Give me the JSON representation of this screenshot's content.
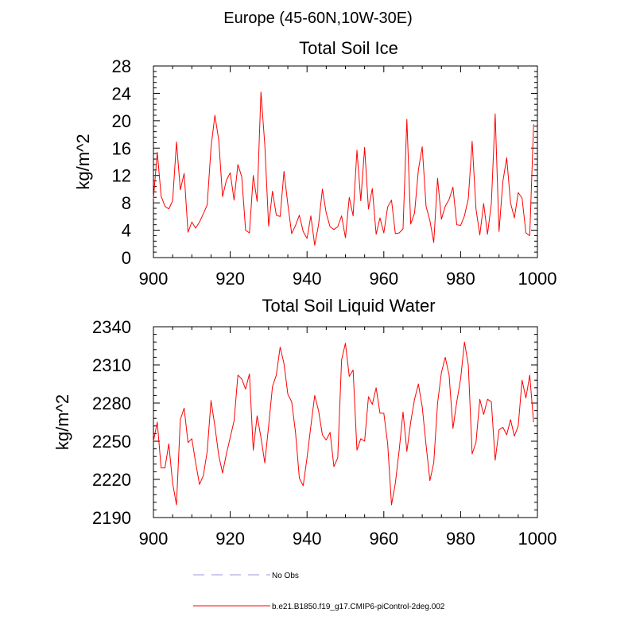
{
  "title": "Europe (45-60N,10W-30E)",
  "chart_data": [
    {
      "type": "line",
      "title": "Total Soil Ice",
      "xlabel": "",
      "ylabel": "kg/m^2",
      "xlim": [
        900,
        1000
      ],
      "ylim": [
        0,
        28
      ],
      "xticks": [
        900,
        920,
        940,
        960,
        980,
        1000
      ],
      "yticks": [
        0,
        4,
        8,
        12,
        16,
        20,
        24,
        28
      ],
      "xtick_labels": [
        "900",
        "920",
        "940",
        "960",
        "980",
        "1000"
      ],
      "ytick_labels": [
        "0",
        "4",
        "8",
        "12",
        "16",
        "20",
        "24",
        "28"
      ],
      "series": [
        {
          "name": "b.e21.B1850.f19_g17.CMIP6-piControl-2deg.002",
          "color": "#ff0000",
          "x_start": 900,
          "values": [
            8.6,
            15.4,
            9.0,
            7.5,
            7.1,
            8.3,
            16.9,
            9.9,
            12.3,
            3.7,
            5.2,
            4.3,
            5.2,
            6.4,
            7.7,
            16.1,
            20.8,
            17.2,
            8.9,
            11.3,
            12.4,
            8.4,
            13.6,
            11.8,
            4.0,
            3.6,
            12.0,
            8.2,
            24.2,
            16.5,
            4.6,
            9.7,
            6.2,
            6.0,
            12.6,
            7.8,
            3.5,
            4.7,
            6.2,
            3.8,
            2.8,
            6.1,
            1.8,
            4.8,
            10.0,
            6.5,
            4.5,
            4.1,
            4.5,
            6.1,
            2.9,
            8.8,
            6.1,
            15.7,
            8.3,
            16.1,
            7.1,
            10.1,
            3.4,
            5.8,
            3.6,
            7.4,
            8.4,
            3.5,
            3.6,
            4.2,
            20.2,
            4.9,
            6.5,
            12.8,
            16.2,
            7.5,
            5.4,
            2.2,
            11.6,
            5.6,
            7.5,
            8.5,
            10.3,
            4.8,
            4.7,
            6.1,
            8.6,
            17.0,
            7.1,
            3.3,
            7.9,
            3.4,
            7.9,
            21.0,
            3.8,
            11.1,
            14.6,
            8.0,
            5.8,
            9.5,
            8.7,
            3.6,
            3.2,
            19.5
          ]
        }
      ]
    },
    {
      "type": "line",
      "title": "Total Soil Liquid Water",
      "xlabel": "",
      "ylabel": "kg/m^2",
      "xlim": [
        900,
        1000
      ],
      "ylim": [
        2190,
        2340
      ],
      "xticks": [
        900,
        920,
        940,
        960,
        980,
        1000
      ],
      "yticks": [
        2190,
        2220,
        2250,
        2280,
        2310,
        2340
      ],
      "xtick_labels": [
        "900",
        "920",
        "940",
        "960",
        "980",
        "1000"
      ],
      "ytick_labels": [
        "2190",
        "2220",
        "2250",
        "2280",
        "2310",
        "2340"
      ],
      "series": [
        {
          "name": "b.e21.B1850.f19_g17.CMIP6-piControl-2deg.002",
          "color": "#ff0000",
          "x_start": 900,
          "values": [
            2250,
            2265,
            2229,
            2229,
            2248,
            2217,
            2200,
            2267,
            2276,
            2249,
            2252,
            2233,
            2216,
            2223,
            2242,
            2282,
            2262,
            2239,
            2225,
            2240,
            2253,
            2266,
            2302,
            2299,
            2291,
            2303,
            2243,
            2270,
            2253,
            2233,
            2262,
            2293,
            2302,
            2324,
            2311,
            2287,
            2281,
            2257,
            2221,
            2215,
            2237,
            2262,
            2286,
            2274,
            2255,
            2251,
            2257,
            2230,
            2237,
            2314,
            2327,
            2301,
            2306,
            2243,
            2252,
            2250,
            2285,
            2279,
            2292,
            2272,
            2272,
            2248,
            2200,
            2217,
            2243,
            2273,
            2242,
            2265,
            2283,
            2295,
            2277,
            2247,
            2219,
            2233,
            2280,
            2304,
            2316,
            2302,
            2260,
            2281,
            2299,
            2328,
            2310,
            2240,
            2249,
            2283,
            2271,
            2283,
            2281,
            2235,
            2259,
            2261,
            2255,
            2267,
            2254,
            2262,
            2298,
            2284,
            2302,
            2265
          ]
        }
      ]
    }
  ],
  "legend": [
    {
      "label": "No Obs",
      "color": "#9999dd",
      "style": "dashed"
    },
    {
      "label": "b.e21.B1850.f19_g17.CMIP6-piControl-2deg.002",
      "color": "#ff0000",
      "style": "solid"
    }
  ]
}
